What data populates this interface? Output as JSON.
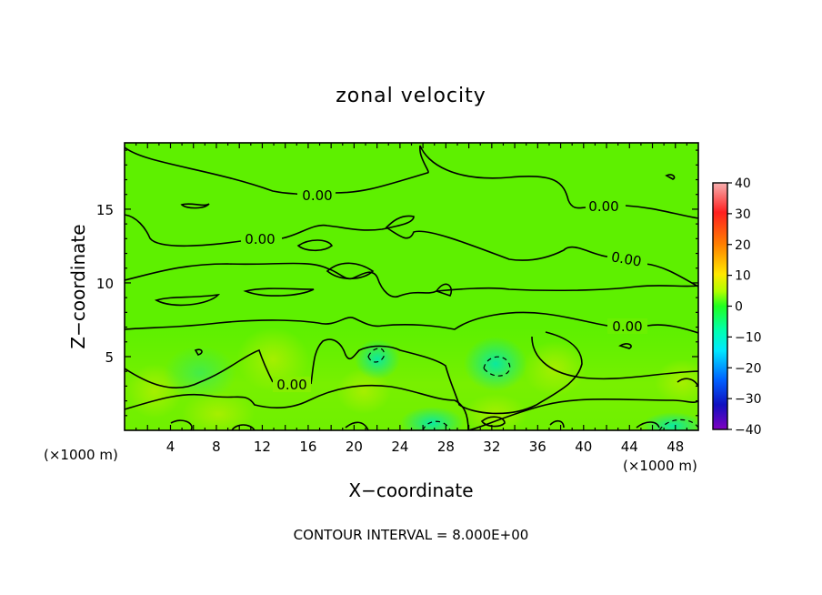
{
  "chart_data": {
    "type": "heatmap",
    "title": "zonal velocity",
    "xlabel": "X−coordinate",
    "ylabel": "Z−coordinate",
    "x_unit": "(×1000 m)",
    "x_unit_right": "(×1000 m)",
    "xlim": [
      0,
      50
    ],
    "ylim": [
      0,
      19.5
    ],
    "x_ticks": [
      4,
      8,
      12,
      16,
      20,
      24,
      28,
      32,
      36,
      40,
      44,
      48
    ],
    "x_tick_labels": [
      "4",
      "8",
      "12",
      "16",
      "20",
      "24",
      "28",
      "32",
      "36",
      "40",
      "44",
      "48"
    ],
    "y_ticks": [
      5,
      10,
      15
    ],
    "y_tick_labels": [
      "5",
      "10",
      "15"
    ],
    "colorbar": {
      "range": [
        -40,
        40
      ],
      "ticks": [
        40,
        30,
        20,
        10,
        0,
        -10,
        -20,
        -30,
        -40
      ],
      "tick_labels": [
        "40",
        "30",
        "20",
        "10",
        "0",
        "−10",
        "−20",
        "−30",
        "−40"
      ],
      "colors": [
        "#f7a0a0",
        "#ff2020",
        "#ff7700",
        "#ffe800",
        "#a8ff00",
        "#00ff40",
        "#00ffd0",
        "#00a0ff",
        "#1020ff",
        "#4000a0",
        "#8000b0"
      ]
    },
    "contour_labels": [
      "0.00",
      "0.00",
      "0.00",
      "0.00",
      "0.00",
      "0.00"
    ],
    "contour_interval_text": "CONTOUR INTERVAL = 8.000E+00",
    "grid": false
  }
}
